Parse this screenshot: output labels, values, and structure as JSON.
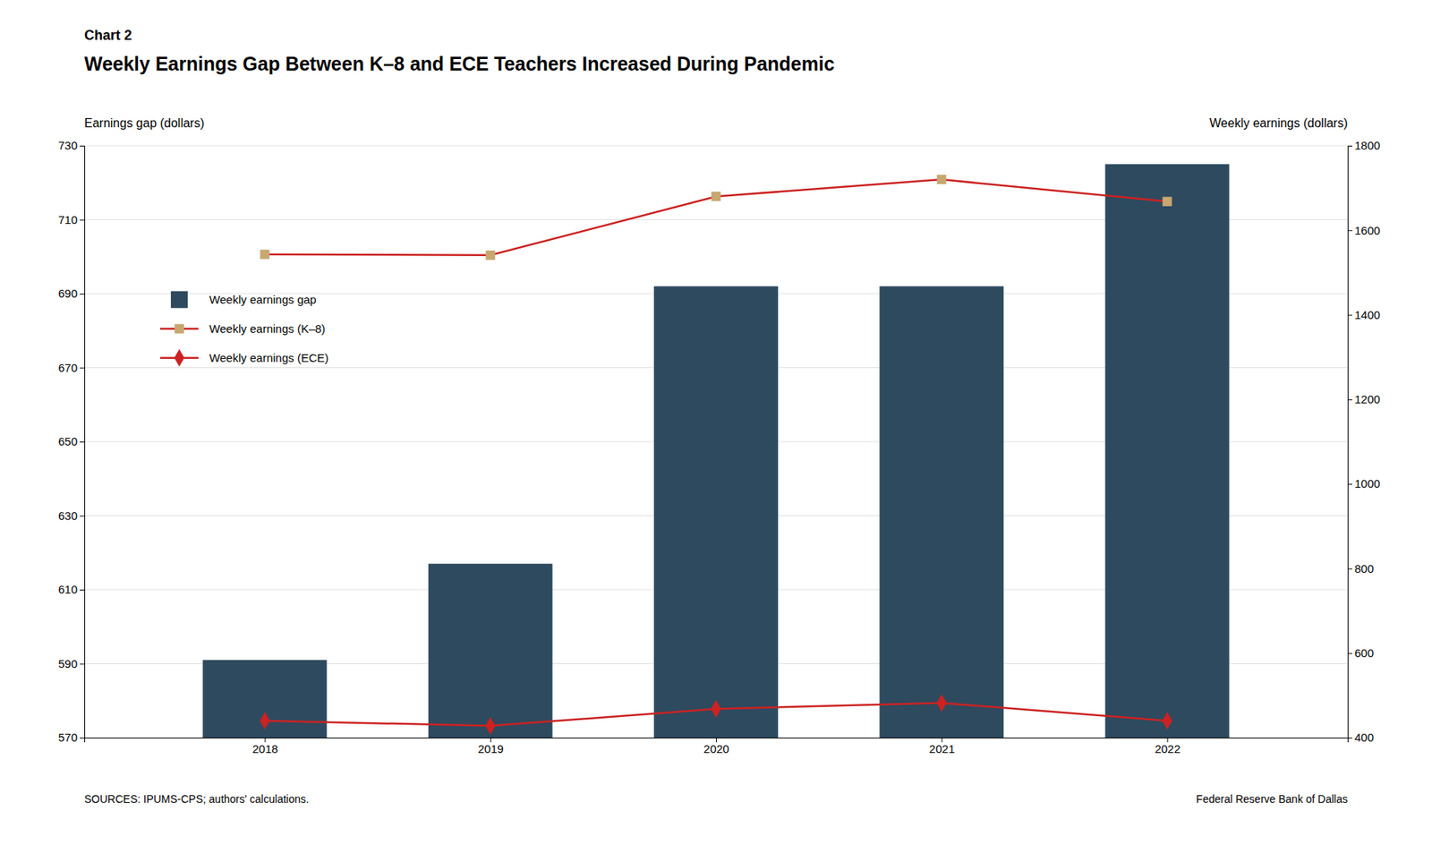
{
  "chart_data": {
    "type": "bar",
    "title": "Weekly Earnings Gap Between K–8 and ECE Teachers Increased During Pandemic",
    "annotations": [
      "Chart 2",
      "SOURCES: IPUMS-CPS; authors' calculations.",
      "Federal Reserve Bank of Dallas"
    ],
    "ylabel": "Earnings gap (dollars)",
    "y2label": "Weekly earnings (dollars)",
    "x": [
      2018,
      2019,
      2020,
      2021,
      2022
    ],
    "xlim": [
      2017.2,
      2022.8
    ],
    "xticks": [
      2018,
      2019,
      2020,
      2021,
      2022
    ],
    "ylim": [
      570,
      730
    ],
    "yticks": [
      570,
      590,
      610,
      630,
      650,
      670,
      690,
      710,
      730
    ],
    "y2lim": [
      400,
      1800
    ],
    "y2ticks": [
      400,
      600,
      800,
      1000,
      1200,
      1400,
      1600,
      1800
    ],
    "grid": true,
    "legend": "upper left",
    "series": [
      {
        "name": "Weekly earnings gap",
        "type": "bar",
        "color": "#2E4A5F",
        "values": [
          591,
          617,
          692,
          692,
          725
        ]
      },
      {
        "name": "Weekly earnings (K–8)",
        "type": "line",
        "axis": "y2",
        "color": "#CC2222",
        "marker": "square",
        "colors": [
          "#C8A870",
          "#C8A870",
          "#C8A870",
          "#C8A870",
          "#C8A870"
        ],
        "values": [
          1543,
          1541,
          1680,
          1720,
          1668
        ]
      },
      {
        "name": "Weekly earnings (ECE)",
        "type": "line",
        "axis": "y2",
        "color": "#CC2222",
        "marker": "diamond",
        "values": [
          440,
          428,
          468,
          482,
          440
        ]
      }
    ]
  }
}
